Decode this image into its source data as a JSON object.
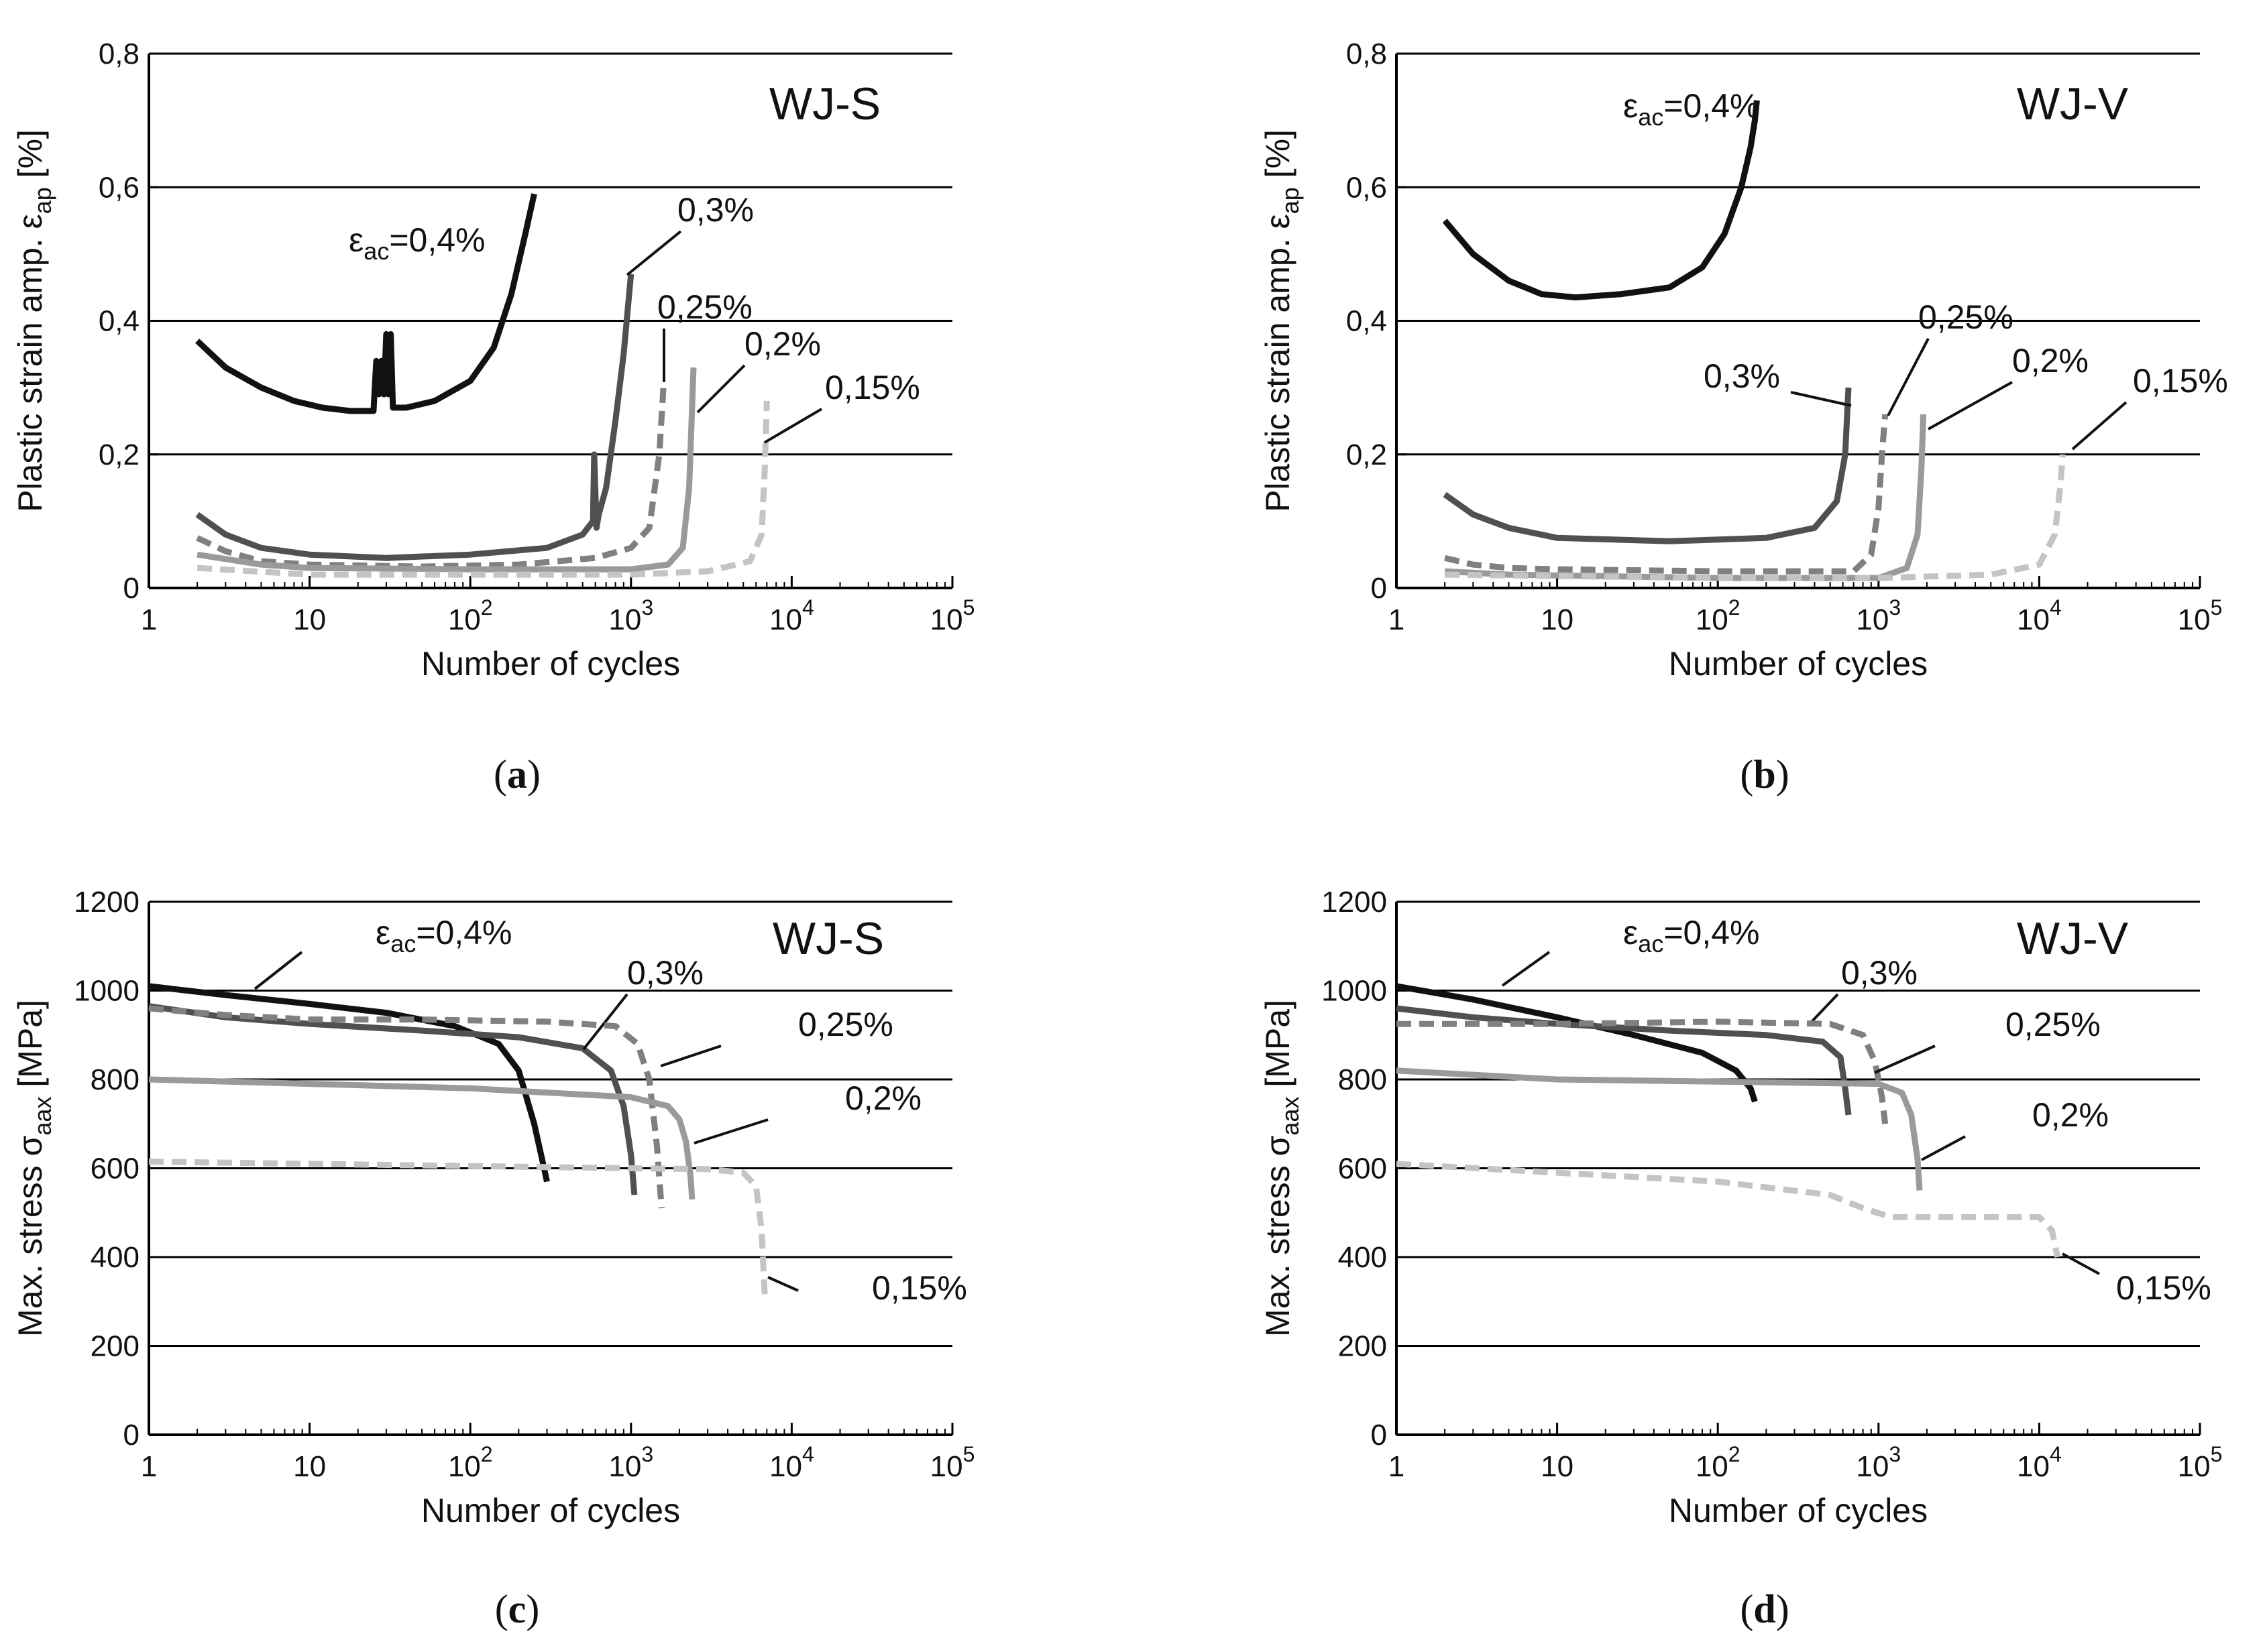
{
  "chart_data": [
    {
      "type": "line",
      "panel": "a",
      "caption": "a",
      "title": "WJ-S",
      "xlabel": "Number of cycles",
      "ylabel": "Plastic strain amp. εap [%]",
      "ylabel_main": "Plastic strain amp. ε",
      "ylabel_sub": "ap",
      "ylabel_unit": " [%]",
      "x_scale": "log",
      "xlim": [
        1,
        100000
      ],
      "ylim": [
        0,
        0.8
      ],
      "x_ticks": [
        {
          "mant": "1",
          "exp": ""
        },
        {
          "mant": "10",
          "exp": ""
        },
        {
          "mant": "10",
          "exp": "2"
        },
        {
          "mant": "10",
          "exp": "3"
        },
        {
          "mant": "10",
          "exp": "4"
        },
        {
          "mant": "10",
          "exp": "5"
        }
      ],
      "y_ticks": [
        {
          "value": 0,
          "label": "0"
        },
        {
          "value": 0.2,
          "label": "0,2"
        },
        {
          "value": 0.4,
          "label": "0,4"
        },
        {
          "value": 0.6,
          "label": "0,6"
        },
        {
          "value": 0.8,
          "label": "0,8"
        }
      ],
      "grid": "horizontal",
      "series": [
        {
          "name": "εac=0,4%",
          "label": "=0,4%",
          "label_prefix": "ε",
          "label_sub": "ac",
          "color": "#111111",
          "dash": false,
          "x": [
            2,
            3,
            5,
            8,
            12,
            18,
            25,
            26,
            27,
            28,
            29,
            30,
            31,
            32,
            33,
            35,
            40,
            60,
            100,
            140,
            180,
            220,
            250
          ],
          "y": [
            0.37,
            0.33,
            0.3,
            0.28,
            0.27,
            0.265,
            0.265,
            0.34,
            0.29,
            0.34,
            0.29,
            0.38,
            0.29,
            0.38,
            0.27,
            0.27,
            0.27,
            0.28,
            0.31,
            0.36,
            0.44,
            0.53,
            0.59
          ]
        },
        {
          "name": "0,3%",
          "label": "0,3%",
          "color": "#505050",
          "dash": false,
          "x": [
            2,
            3,
            5,
            10,
            30,
            100,
            300,
            500,
            580,
            590,
            610,
            630,
            700,
            800,
            900,
            1000
          ],
          "y": [
            0.11,
            0.08,
            0.06,
            0.05,
            0.045,
            0.05,
            0.06,
            0.08,
            0.1,
            0.2,
            0.09,
            0.11,
            0.15,
            0.25,
            0.35,
            0.47
          ]
        },
        {
          "name": "0,25%",
          "label": "0,25%",
          "color": "#808080",
          "dash": true,
          "x": [
            2,
            3,
            5,
            10,
            50,
            200,
            600,
            1000,
            1300,
            1500,
            1600
          ],
          "y": [
            0.075,
            0.055,
            0.04,
            0.035,
            0.032,
            0.035,
            0.045,
            0.06,
            0.09,
            0.2,
            0.31
          ]
        },
        {
          "name": "0,2%",
          "label": "0,2%",
          "color": "#9a9a9a",
          "dash": false,
          "x": [
            2,
            5,
            10,
            100,
            1000,
            1700,
            2100,
            2300,
            2450
          ],
          "y": [
            0.05,
            0.035,
            0.03,
            0.028,
            0.028,
            0.035,
            0.06,
            0.15,
            0.33
          ]
        },
        {
          "name": "0,15%",
          "label": "0,15%",
          "color": "#c4c4c4",
          "dash": true,
          "x": [
            2,
            10,
            100,
            1000,
            3000,
            5500,
            6500,
            6800,
            7000
          ],
          "y": [
            0.03,
            0.02,
            0.02,
            0.02,
            0.025,
            0.04,
            0.08,
            0.18,
            0.28
          ]
        }
      ]
    },
    {
      "type": "line",
      "panel": "b",
      "caption": "b",
      "title": "WJ-V",
      "xlabel": "Number of cycles",
      "ylabel": "Plastic strain amp. εap [%]",
      "ylabel_main": "Plastic strain amp. ε",
      "ylabel_sub": "ap",
      "ylabel_unit": " [%]",
      "x_scale": "log",
      "xlim": [
        1,
        100000
      ],
      "ylim": [
        0,
        0.8
      ],
      "x_ticks": [
        {
          "mant": "1",
          "exp": ""
        },
        {
          "mant": "10",
          "exp": ""
        },
        {
          "mant": "10",
          "exp": "2"
        },
        {
          "mant": "10",
          "exp": "3"
        },
        {
          "mant": "10",
          "exp": "4"
        },
        {
          "mant": "10",
          "exp": "5"
        }
      ],
      "y_ticks": [
        {
          "value": 0,
          "label": "0"
        },
        {
          "value": 0.2,
          "label": "0,2"
        },
        {
          "value": 0.4,
          "label": "0,4"
        },
        {
          "value": 0.6,
          "label": "0,6"
        },
        {
          "value": 0.8,
          "label": "0,8"
        }
      ],
      "grid": "horizontal",
      "series": [
        {
          "name": "εac=0,4%",
          "label": "=0,4%",
          "label_prefix": "ε",
          "label_sub": "ac",
          "color": "#111111",
          "dash": false,
          "x": [
            2,
            3,
            5,
            8,
            13,
            25,
            50,
            80,
            110,
            140,
            160,
            170,
            175
          ],
          "y": [
            0.55,
            0.5,
            0.46,
            0.44,
            0.435,
            0.44,
            0.45,
            0.48,
            0.53,
            0.6,
            0.66,
            0.7,
            0.73
          ]
        },
        {
          "name": "0,3%",
          "label": "0,3%",
          "color": "#505050",
          "dash": false,
          "x": [
            2,
            3,
            5,
            10,
            50,
            200,
            400,
            550,
            620,
            650
          ],
          "y": [
            0.14,
            0.11,
            0.09,
            0.075,
            0.07,
            0.075,
            0.09,
            0.13,
            0.2,
            0.3
          ]
        },
        {
          "name": "0,25%",
          "label": "0,25%",
          "color": "#808080",
          "dash": true,
          "x": [
            2,
            3,
            5,
            10,
            100,
            700,
            900,
            1000,
            1050,
            1100
          ],
          "y": [
            0.045,
            0.035,
            0.03,
            0.028,
            0.025,
            0.025,
            0.05,
            0.12,
            0.2,
            0.26
          ]
        },
        {
          "name": "0,2%",
          "label": "0,2%",
          "color": "#9a9a9a",
          "dash": false,
          "x": [
            2,
            5,
            100,
            1000,
            1500,
            1750,
            1850,
            1900
          ],
          "y": [
            0.025,
            0.02,
            0.015,
            0.015,
            0.03,
            0.08,
            0.18,
            0.26
          ]
        },
        {
          "name": "0,15%",
          "label": "0,15%",
          "color": "#c4c4c4",
          "dash": true,
          "x": [
            2,
            100,
            1000,
            5000,
            10000,
            12500,
            13500,
            14000
          ],
          "y": [
            0.02,
            0.015,
            0.015,
            0.02,
            0.035,
            0.08,
            0.15,
            0.2
          ]
        }
      ]
    },
    {
      "type": "line",
      "panel": "c",
      "caption": "c",
      "title": "WJ-S",
      "xlabel": "Number of cycles",
      "ylabel": "Max. stress σaax [MPa]",
      "ylabel_main": "Max. stress σ",
      "ylabel_sub": "aax",
      "ylabel_unit": " [MPa]",
      "x_scale": "log",
      "xlim": [
        1,
        100000
      ],
      "ylim": [
        0,
        1200
      ],
      "x_ticks": [
        {
          "mant": "1",
          "exp": ""
        },
        {
          "mant": "10",
          "exp": ""
        },
        {
          "mant": "10",
          "exp": "2"
        },
        {
          "mant": "10",
          "exp": "3"
        },
        {
          "mant": "10",
          "exp": "4"
        },
        {
          "mant": "10",
          "exp": "5"
        }
      ],
      "y_ticks": [
        {
          "value": 0,
          "label": "0"
        },
        {
          "value": 200,
          "label": "200"
        },
        {
          "value": 400,
          "label": "400"
        },
        {
          "value": 600,
          "label": "600"
        },
        {
          "value": 800,
          "label": "800"
        },
        {
          "value": 1000,
          "label": "1000"
        },
        {
          "value": 1200,
          "label": "1200"
        }
      ],
      "grid": "horizontal",
      "series": [
        {
          "name": "εac=0,4%",
          "label": "=0,4%",
          "label_prefix": "ε",
          "label_sub": "ac",
          "color": "#111111",
          "dash": false,
          "x": [
            1,
            3,
            10,
            30,
            80,
            150,
            200,
            250,
            280,
            300
          ],
          "y": [
            1010,
            990,
            970,
            950,
            920,
            880,
            820,
            700,
            620,
            570
          ]
        },
        {
          "name": "0,3%",
          "label": "0,3%",
          "color": "#505050",
          "dash": false,
          "x": [
            1,
            3,
            10,
            50,
            200,
            500,
            750,
            900,
            1000,
            1050
          ],
          "y": [
            965,
            940,
            925,
            910,
            895,
            870,
            820,
            740,
            630,
            540
          ]
        },
        {
          "name": "0,25%",
          "label": "0,25%",
          "color": "#808080",
          "dash": true,
          "x": [
            1,
            3,
            10,
            50,
            300,
            800,
            1100,
            1300,
            1450,
            1550
          ],
          "y": [
            960,
            945,
            935,
            935,
            930,
            920,
            880,
            800,
            650,
            510
          ]
        },
        {
          "name": "0,2%",
          "label": "0,2%",
          "color": "#9a9a9a",
          "dash": false,
          "x": [
            1,
            10,
            100,
            1000,
            1700,
            2000,
            2200,
            2350,
            2400
          ],
          "y": [
            800,
            790,
            780,
            760,
            740,
            710,
            660,
            580,
            530
          ]
        },
        {
          "name": "0,15%",
          "label": "0,15%",
          "color": "#c4c4c4",
          "dash": true,
          "x": [
            1,
            10,
            100,
            1000,
            3000,
            5000,
            6000,
            6500,
            6800
          ],
          "y": [
            615,
            610,
            605,
            600,
            598,
            590,
            560,
            460,
            310
          ]
        }
      ]
    },
    {
      "type": "line",
      "panel": "d",
      "caption": "d",
      "title": "WJ-V",
      "xlabel": "Number of cycles",
      "ylabel": "Max. stress σaax [MPa]",
      "ylabel_main": "Max. stress σ",
      "ylabel_sub": "aax",
      "ylabel_unit": " [MPa]",
      "x_scale": "log",
      "xlim": [
        1,
        100000
      ],
      "ylim": [
        0,
        1200
      ],
      "x_ticks": [
        {
          "mant": "1",
          "exp": ""
        },
        {
          "mant": "10",
          "exp": ""
        },
        {
          "mant": "10",
          "exp": "2"
        },
        {
          "mant": "10",
          "exp": "3"
        },
        {
          "mant": "10",
          "exp": "4"
        },
        {
          "mant": "10",
          "exp": "5"
        }
      ],
      "y_ticks": [
        {
          "value": 0,
          "label": "0"
        },
        {
          "value": 200,
          "label": "200"
        },
        {
          "value": 400,
          "label": "400"
        },
        {
          "value": 600,
          "label": "600"
        },
        {
          "value": 800,
          "label": "800"
        },
        {
          "value": 1000,
          "label": "1000"
        },
        {
          "value": 1200,
          "label": "1200"
        }
      ],
      "grid": "horizontal",
      "series": [
        {
          "name": "εac=0,4%",
          "label": "=0,4%",
          "label_prefix": "ε",
          "label_sub": "ac",
          "color": "#111111",
          "dash": false,
          "x": [
            1,
            3,
            10,
            30,
            80,
            130,
            160,
            170
          ],
          "y": [
            1010,
            980,
            940,
            900,
            860,
            820,
            780,
            750
          ]
        },
        {
          "name": "0,3%",
          "label": "0,3%",
          "color": "#505050",
          "dash": false,
          "x": [
            1,
            3,
            10,
            50,
            200,
            450,
            580,
            620,
            650
          ],
          "y": [
            960,
            940,
            925,
            910,
            900,
            885,
            850,
            780,
            720
          ]
        },
        {
          "name": "0,25%",
          "label": "0,25%",
          "color": "#808080",
          "dash": true,
          "x": [
            1,
            10,
            100,
            500,
            800,
            950,
            1050,
            1100
          ],
          "y": [
            925,
            925,
            930,
            925,
            900,
            840,
            760,
            700
          ]
        },
        {
          "name": "0,2%",
          "label": "0,2%",
          "color": "#9a9a9a",
          "dash": false,
          "x": [
            1,
            10,
            100,
            1000,
            1400,
            1600,
            1750,
            1800
          ],
          "y": [
            820,
            800,
            795,
            790,
            770,
            720,
            620,
            550
          ]
        },
        {
          "name": "0,15%",
          "label": "0,15%",
          "color": "#c4c4c4",
          "dash": true,
          "x": [
            1,
            10,
            100,
            500,
            800,
            1200,
            3000,
            10000,
            12000,
            13000
          ],
          "y": [
            610,
            590,
            570,
            540,
            510,
            490,
            490,
            490,
            460,
            400
          ]
        }
      ]
    }
  ]
}
